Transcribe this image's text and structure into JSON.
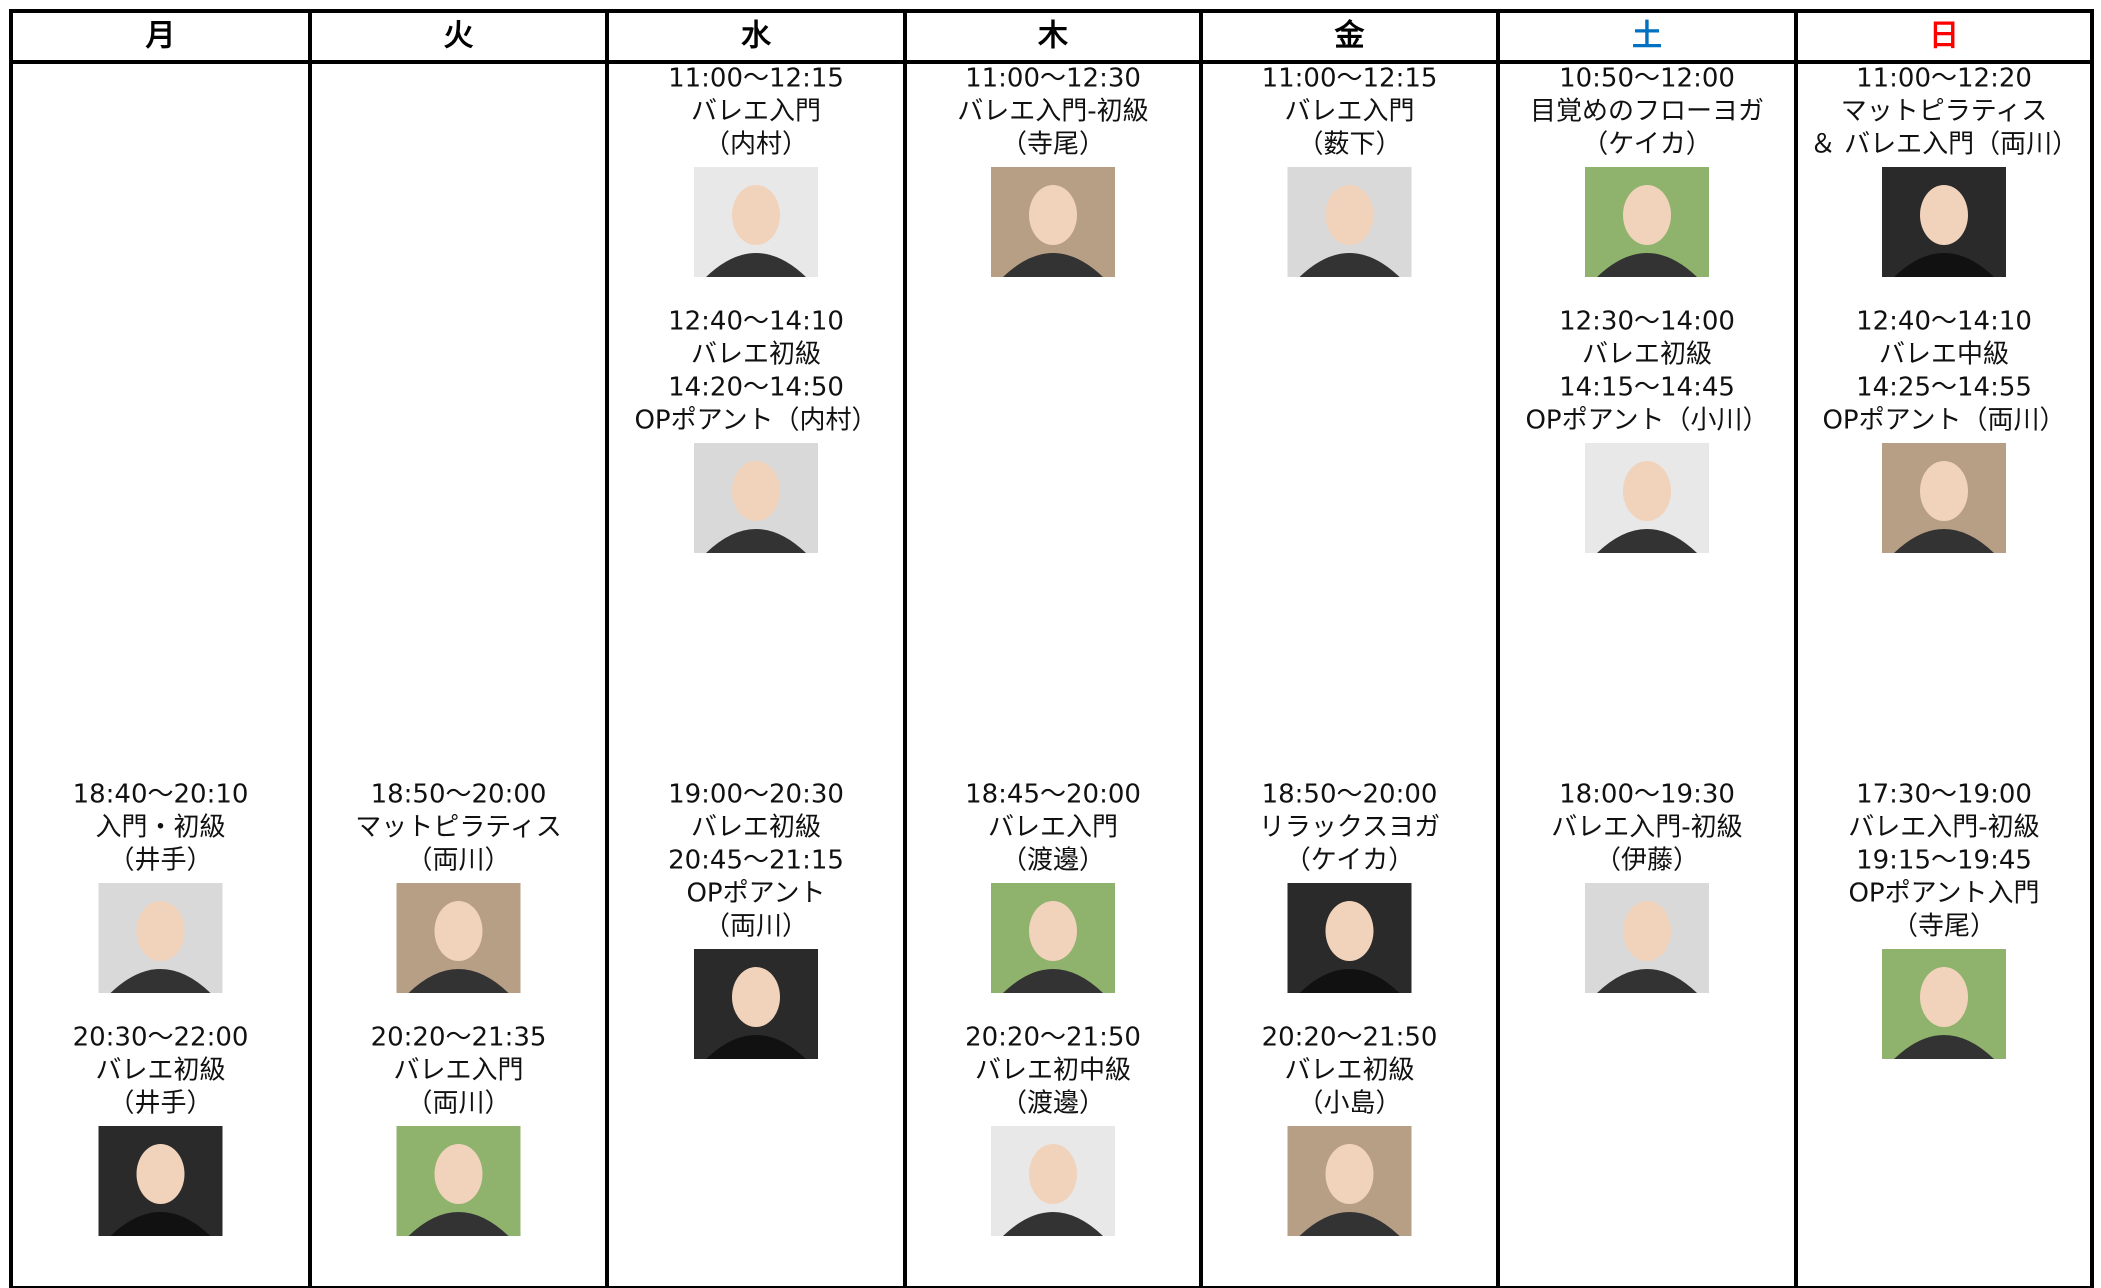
{
  "days": [
    {
      "name": "月",
      "color": "#000000",
      "morning": [],
      "evening": [
        {
          "lines": [
            "18:40～20:10",
            "入門・初級",
            "（井手）"
          ]
        },
        {
          "lines": [
            "20:30～22:00",
            "バレエ初級",
            "（井手）"
          ]
        }
      ]
    },
    {
      "name": "火",
      "color": "#000000",
      "morning": [],
      "evening": [
        {
          "lines": [
            "18:50～20:00",
            "マットピラティス",
            "（両川）"
          ]
        },
        {
          "lines": [
            "20:20～21:35",
            "バレエ入門",
            "（両川）"
          ]
        }
      ]
    },
    {
      "name": "水",
      "color": "#000000",
      "morning": [
        {
          "lines": [
            "11:00～12:15",
            "バレエ入門",
            "（内村）"
          ]
        },
        {
          "lines": [
            "12:40～14:10",
            "バレエ初級",
            "14:20～14:50",
            "OPポアント（内村）"
          ]
        }
      ],
      "evening": [
        {
          "lines": [
            "19:00～20:30",
            "バレエ初級",
            "20:45～21:15",
            "OPポアント",
            "（両川）"
          ]
        }
      ]
    },
    {
      "name": "木",
      "color": "#000000",
      "morning": [
        {
          "lines": [
            "11:00～12:30",
            "バレエ入門-初級",
            "（寺尾）"
          ]
        }
      ],
      "evening": [
        {
          "lines": [
            "18:45～20:00",
            "バレエ入門",
            "（渡邊）"
          ]
        },
        {
          "lines": [
            "20:20～21:50",
            "バレエ初中級",
            "（渡邊）"
          ]
        }
      ]
    },
    {
      "name": "金",
      "color": "#000000",
      "morning": [
        {
          "lines": [
            "11:00～12:15",
            "バレエ入門",
            "（薮下）"
          ]
        }
      ],
      "evening": [
        {
          "lines": [
            "18:50～20:00",
            "リラックスヨガ",
            "（ケイカ）"
          ]
        },
        {
          "lines": [
            "20:20～21:50",
            "バレエ初級",
            "（小島）"
          ]
        }
      ]
    },
    {
      "name": "土",
      "color": "#0070c0",
      "morning": [
        {
          "lines": [
            "10:50～12:00",
            "目覚めのフローヨガ",
            "（ケイカ）"
          ]
        },
        {
          "lines": [
            "12:30～14:00",
            "バレエ初級",
            "14:15～14:45",
            "OPポアント（小川）"
          ]
        }
      ],
      "evening": [
        {
          "lines": [
            "18:00～19:30",
            "バレエ入門-初級",
            "（伊藤）"
          ]
        }
      ]
    },
    {
      "name": "日",
      "color": "#ff0000",
      "morning": [
        {
          "lines": [
            "11:00～12:20",
            "マットピラティス",
            "＆ バレエ入門（両川）"
          ]
        },
        {
          "lines": [
            "12:40～14:10",
            "バレエ中級",
            "14:25～14:55",
            "OPポアント（両川）"
          ]
        }
      ],
      "evening": [
        {
          "lines": [
            "17:30～19:00",
            "バレエ入門-初級",
            "19:15～19:45",
            "OPポアント入門",
            "（寺尾）"
          ]
        }
      ]
    }
  ]
}
